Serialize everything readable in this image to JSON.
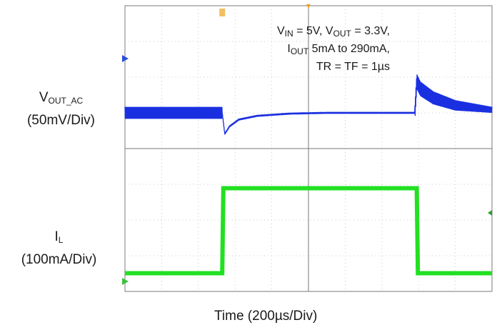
{
  "chart_data": [
    {
      "type": "line",
      "name": "vout-trace",
      "title": "",
      "ylabel": {
        "main": "V",
        "sub": "OUT_AC",
        "scale": "(50mV/Div)"
      },
      "xlabel": "Time (200µs/Div)",
      "xlim_div": [
        0,
        10
      ],
      "ylim_div": [
        -4,
        4
      ],
      "grid": true,
      "color": "#1a30e0",
      "series": [
        {
          "x_div": [
            0,
            2.65,
            2.72,
            2.85,
            3.1,
            3.6,
            4.5,
            5.5,
            7.0,
            7.9,
            7.95,
            8.05,
            8.4,
            9.0,
            10.0
          ],
          "y_div": [
            0.0,
            0.0,
            -1.4,
            -0.9,
            -0.45,
            -0.2,
            -0.05,
            0.0,
            0.0,
            0.0,
            2.1,
            1.6,
            1.0,
            0.5,
            0.2
          ],
          "ripple_amplitude_div": [
            0.4,
            0.06,
            0.5
          ]
        }
      ]
    },
    {
      "type": "line",
      "name": "il-trace",
      "title": "",
      "ylabel": {
        "main": "I",
        "sub": "L",
        "scale": "(100mA/Div)"
      },
      "xlabel": "Time (200µs/Div)",
      "xlim_div": [
        0,
        10
      ],
      "ylim_div": [
        0,
        4
      ],
      "grid": true,
      "color": "#22e022",
      "series": [
        {
          "x_div": [
            0,
            2.65,
            2.68,
            7.95,
            7.98,
            10.0
          ],
          "y_div": [
            0.2,
            0.2,
            3.0,
            3.0,
            0.2,
            0.2
          ]
        }
      ]
    }
  ],
  "annotation": {
    "line1_v": "V",
    "line1_in": "IN",
    "line1_mid": " = 5V, V",
    "line1_out": "OUT",
    "line1_end": " = 3.3V,",
    "line2_i": "I",
    "line2_out": "OUT",
    "line2_end": " 5mA to 290mA,",
    "line3": "TR = TF = 1µs"
  },
  "xlabel": "Time (200µs/Div)",
  "markers": {
    "trigger": "T",
    "cursor": "U"
  }
}
